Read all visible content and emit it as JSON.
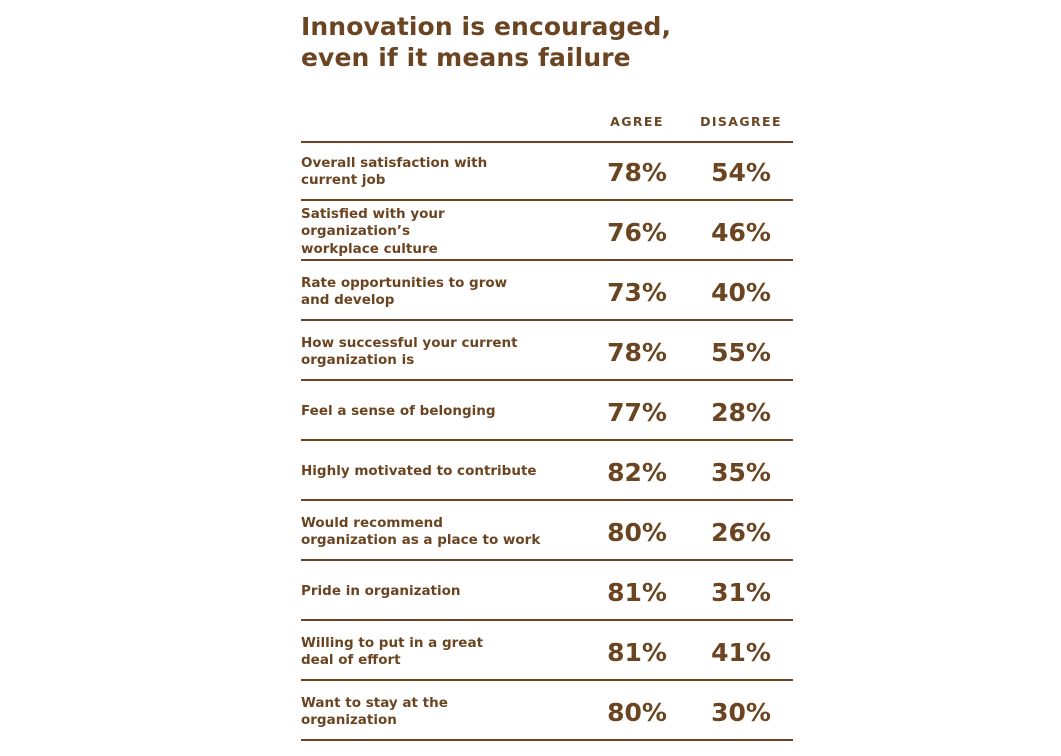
{
  "colors": {
    "text": "#6b4522",
    "rule": "#6b4522",
    "background": "#ffffff"
  },
  "title_lines": [
    "Innovation is encouraged,",
    "even if it means failure"
  ],
  "chart_data": {
    "type": "table",
    "title": "Innovation is encouraged, even if it means failure",
    "columns": [
      "AGREE",
      "DISAGREE"
    ],
    "rows": [
      {
        "label": "Overall satisfaction with current job",
        "label_lines": [
          "Overall satisfaction with",
          "current job"
        ],
        "agree": "78%",
        "disagree": "54%"
      },
      {
        "label": "Satisfied with your organization’s workplace culture",
        "label_lines": [
          "Satisfied with your organization’s",
          "workplace culture"
        ],
        "agree": "76%",
        "disagree": "46%"
      },
      {
        "label": "Rate opportunities to grow and develop",
        "label_lines": [
          "Rate opportunities to grow",
          "and develop"
        ],
        "agree": "73%",
        "disagree": "40%"
      },
      {
        "label": "How successful your current organization is",
        "label_lines": [
          "How successful your current",
          "organization is"
        ],
        "agree": "78%",
        "disagree": "55%"
      },
      {
        "label": "Feel a sense of belonging",
        "label_lines": [
          "Feel a sense of belonging"
        ],
        "agree": "77%",
        "disagree": "28%"
      },
      {
        "label": "Highly motivated to contribute",
        "label_lines": [
          "Highly motivated to contribute"
        ],
        "agree": "82%",
        "disagree": "35%"
      },
      {
        "label": "Would recommend organization as a place to work",
        "label_lines": [
          "Would recommend",
          "organization as a place to work"
        ],
        "agree": "80%",
        "disagree": "26%"
      },
      {
        "label": "Pride in organization",
        "label_lines": [
          "Pride in organization"
        ],
        "agree": "81%",
        "disagree": "31%"
      },
      {
        "label": "Willing to put in a great deal of effort",
        "label_lines": [
          "Willing to put in a great",
          "deal of effort"
        ],
        "agree": "81%",
        "disagree": "41%"
      },
      {
        "label": "Want to stay at the organization",
        "label_lines": [
          "Want to stay at the",
          "organization"
        ],
        "agree": "80%",
        "disagree": "30%"
      }
    ]
  }
}
